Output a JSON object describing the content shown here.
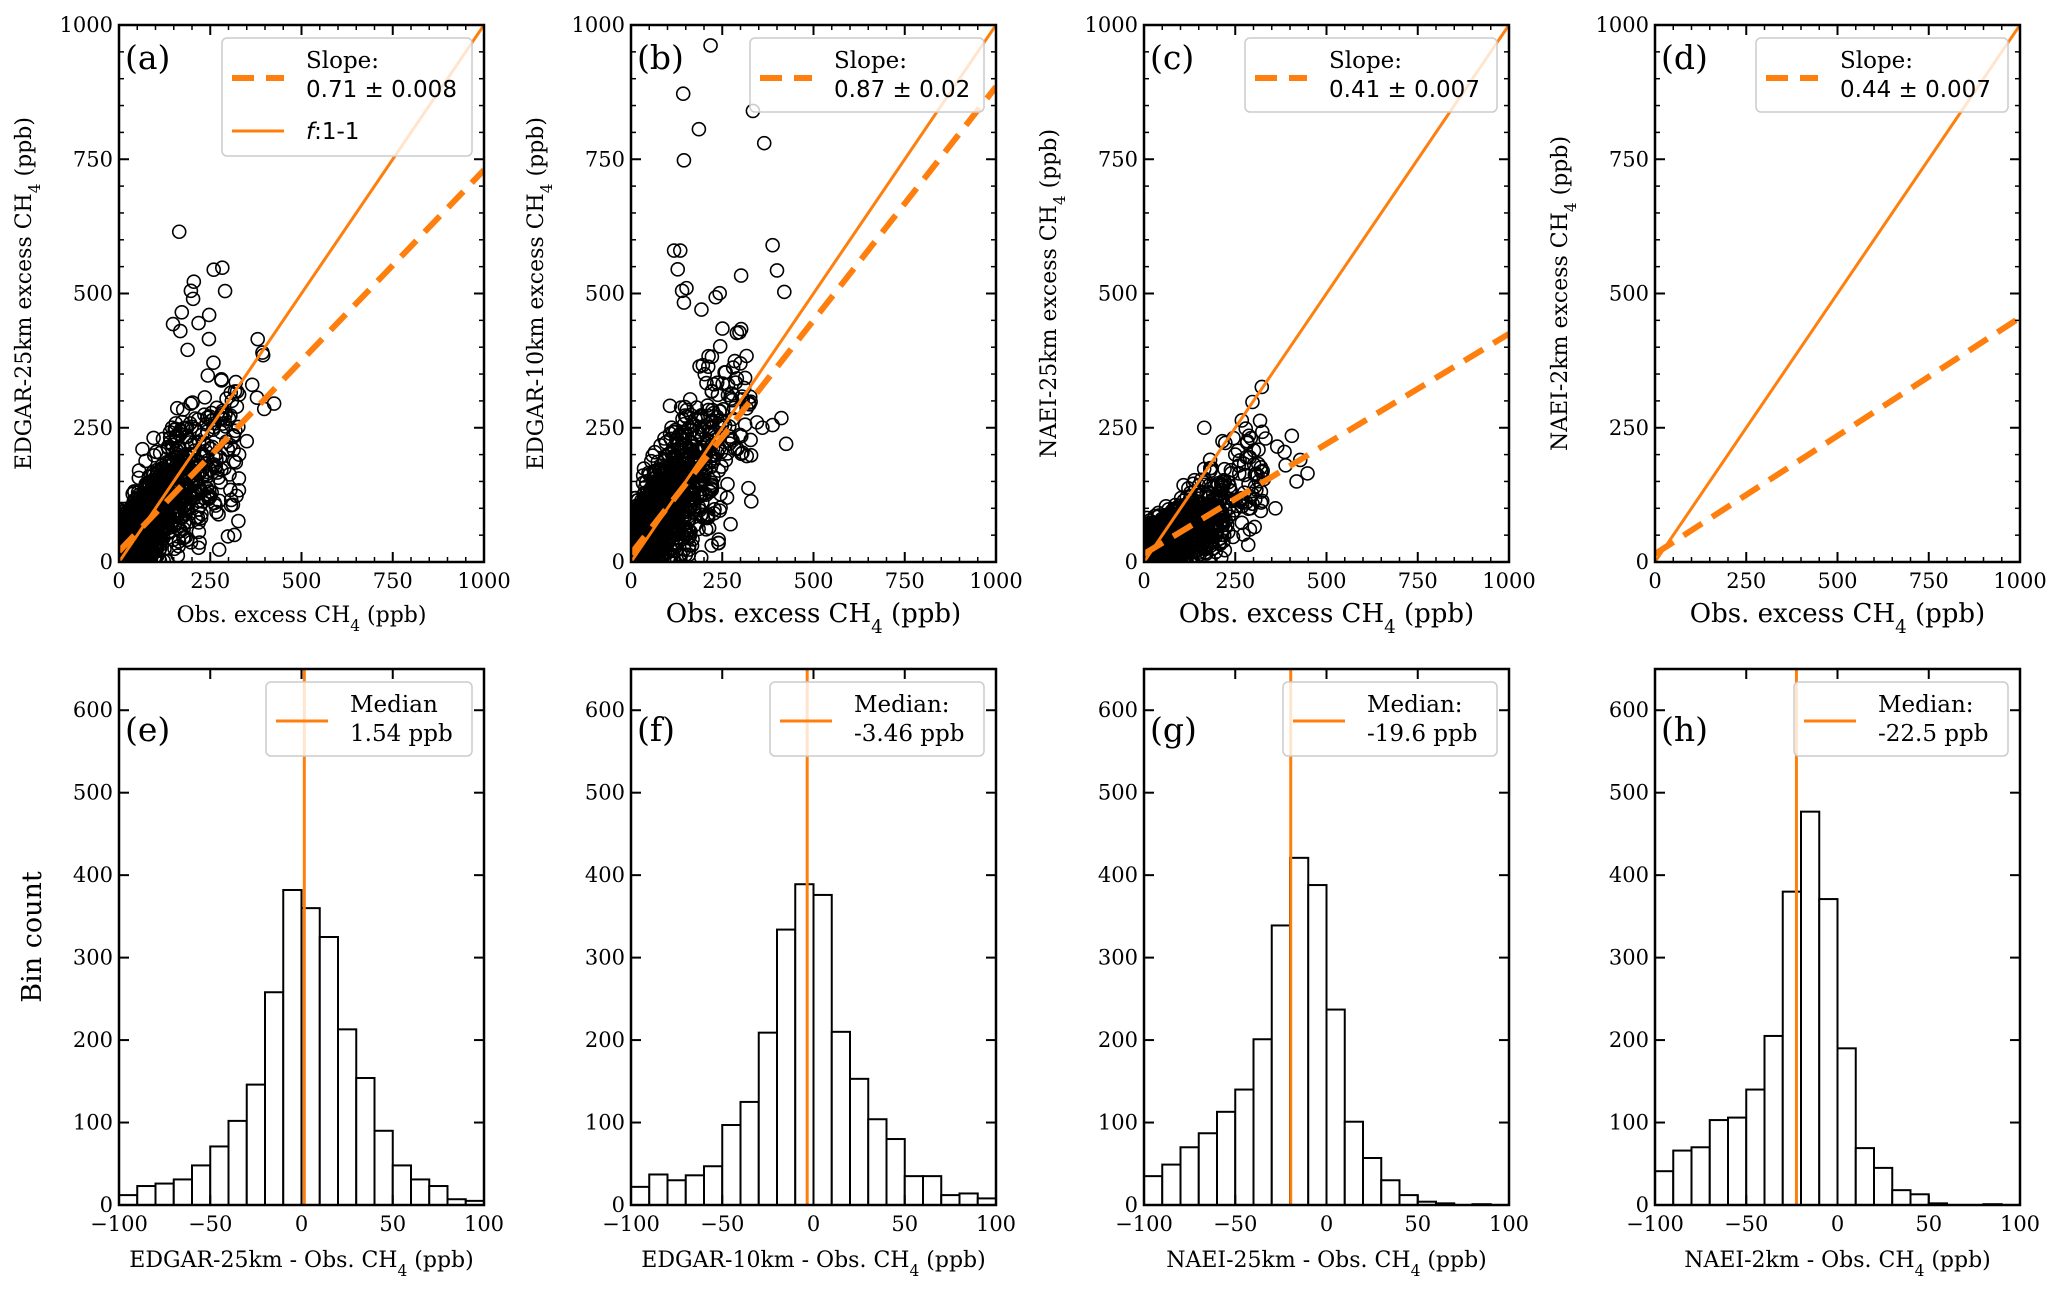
{
  "figure": {
    "accent_color": "#ff7f0e",
    "marker_color": "#000000"
  },
  "chart_data": [
    {
      "id": "a",
      "type": "scatter",
      "panel_label": "(a)",
      "xlabel": "Obs. excess CH4 (ppb)",
      "ylabel": "EDGAR-25km excess CH4 (ppb)",
      "xlim": [
        0,
        1000
      ],
      "ylim": [
        0,
        1000
      ],
      "xticks": [
        0,
        250,
        500,
        750,
        1000
      ],
      "yticks": [
        0,
        250,
        500,
        750,
        1000
      ],
      "legend": {
        "position": "top-right",
        "entries": [
          {
            "style": "dashed",
            "title": "Slope:",
            "label": "0.71 ± 0.008"
          },
          {
            "style": "solid",
            "title": "",
            "label": "f:1-1"
          }
        ]
      },
      "fit": {
        "slope": 0.71,
        "slope_err": 0.008,
        "intercept": 20
      },
      "one_to_one": true,
      "cloud": {
        "n": 1400,
        "xscale": 95,
        "spread": 45,
        "seed": 11
      },
      "outliers": [
        [
          165,
          615
        ],
        [
          283,
          548
        ],
        [
          205,
          522
        ],
        [
          197,
          505
        ],
        [
          203,
          490
        ],
        [
          172,
          465
        ],
        [
          148,
          443
        ],
        [
          168,
          430
        ],
        [
          218,
          445
        ],
        [
          247,
          460
        ],
        [
          380,
          415
        ],
        [
          393,
          390
        ],
        [
          395,
          385
        ],
        [
          188,
          395
        ],
        [
          365,
          330
        ],
        [
          320,
          335
        ],
        [
          378,
          306
        ],
        [
          425,
          295
        ],
        [
          398,
          285
        ],
        [
          283,
          268
        ],
        [
          195,
          258
        ],
        [
          350,
          225
        ],
        [
          262,
          110
        ]
      ]
    },
    {
      "id": "b",
      "type": "scatter",
      "panel_label": "(b)",
      "xlabel": "Obs. excess CH4 (ppb)",
      "ylabel": "EDGAR-10km excess CH4 (ppb)",
      "xlim": [
        0,
        1000
      ],
      "ylim": [
        0,
        1000
      ],
      "xticks": [
        0,
        250,
        500,
        750,
        1000
      ],
      "yticks": [
        0,
        250,
        500,
        750,
        1000
      ],
      "legend": {
        "position": "top-right",
        "entries": [
          {
            "style": "dashed",
            "title": "Slope:",
            "label": "0.87 ± 0.02"
          }
        ]
      },
      "fit": {
        "slope": 0.87,
        "slope_err": 0.02,
        "intercept": 15
      },
      "one_to_one": true,
      "cloud": {
        "n": 1600,
        "xscale": 90,
        "spread": 55,
        "seed": 23
      },
      "outliers": [
        [
          218,
          962
        ],
        [
          143,
          872
        ],
        [
          186,
          806
        ],
        [
          334,
          840
        ],
        [
          145,
          748
        ],
        [
          365,
          780
        ],
        [
          118,
          580
        ],
        [
          135,
          580
        ],
        [
          128,
          545
        ],
        [
          140,
          505
        ],
        [
          152,
          510
        ],
        [
          388,
          590
        ],
        [
          400,
          543
        ],
        [
          420,
          503
        ],
        [
          145,
          483
        ],
        [
          232,
          493
        ],
        [
          193,
          470
        ],
        [
          412,
          268
        ],
        [
          388,
          255
        ],
        [
          425,
          220
        ],
        [
          360,
          250
        ],
        [
          345,
          260
        ],
        [
          240,
          35
        ]
      ]
    },
    {
      "id": "c",
      "type": "scatter",
      "panel_label": "(c)",
      "xlabel": "Obs. excess CH4 (ppb)",
      "ylabel": "NAEI-25km excess CH4 (ppb)",
      "xlim": [
        0,
        1000
      ],
      "ylim": [
        0,
        1000
      ],
      "xticks": [
        0,
        250,
        500,
        750,
        1000
      ],
      "yticks": [
        0,
        250,
        500,
        750,
        1000
      ],
      "legend": {
        "position": "top-right",
        "entries": [
          {
            "style": "dashed",
            "title": "Slope:",
            "label": "0.41 ± 0.007"
          }
        ]
      },
      "fit": {
        "slope": 0.41,
        "slope_err": 0.007,
        "intercept": 15
      },
      "one_to_one": true,
      "cloud": {
        "n": 1400,
        "xscale": 90,
        "spread": 30,
        "seed": 37
      },
      "outliers": [
        [
          165,
          250
        ],
        [
          215,
          225
        ],
        [
          283,
          225
        ],
        [
          333,
          230
        ],
        [
          405,
          235
        ],
        [
          365,
          215
        ],
        [
          385,
          205
        ],
        [
          388,
          180
        ],
        [
          428,
          190
        ],
        [
          448,
          165
        ],
        [
          418,
          150
        ],
        [
          290,
          195
        ],
        [
          250,
          200
        ],
        [
          360,
          100
        ],
        [
          320,
          95
        ],
        [
          185,
          175
        ]
      ]
    },
    {
      "id": "d",
      "type": "scatter",
      "panel_label": "(d)",
      "xlabel": "Obs. excess CH4 (ppb)",
      "ylabel": "NAEI-2km excess CH4 (ppb)",
      "xlim": [
        0,
        1000
      ],
      "ylim": [
        0,
        1000
      ],
      "xticks": [
        0,
        250,
        500,
        750,
        1000
      ],
      "yticks": [
        0,
        250,
        500,
        750,
        1000
      ],
      "legend": {
        "position": "top-right",
        "entries": [
          {
            "style": "dashed",
            "title": "Slope:",
            "label": "0.44 ± 0.007"
          }
        ]
      },
      "fit": {
        "slope": 0.44,
        "slope_err": 0.007,
        "intercept": 15
      },
      "one_to_one": true,
      "cloud": {
        "n": 0,
        "xscale": 0,
        "spread": 0,
        "seed": 1
      },
      "outliers": []
    },
    {
      "id": "e",
      "type": "bar",
      "subtype": "histogram",
      "panel_label": "(e)",
      "xlabel": "EDGAR-25km - Obs. CH4 (ppb)",
      "ylabel": "Bin count",
      "xlim": [
        -100,
        100
      ],
      "ylim": [
        0,
        650
      ],
      "xticks": [
        -100,
        -50,
        0,
        50,
        100
      ],
      "yticks": [
        0,
        100,
        200,
        300,
        400,
        500,
        600
      ],
      "bin_edges_start": -100,
      "bin_width": 10,
      "values": [
        12,
        23,
        26,
        31,
        48,
        71,
        102,
        146,
        258,
        382,
        360,
        325,
        213,
        154,
        90,
        48,
        31,
        23,
        7,
        5
      ],
      "median": 1.54,
      "legend": {
        "position": "top-right",
        "title": "Median",
        "label": "1.54 ppb"
      }
    },
    {
      "id": "f",
      "type": "bar",
      "subtype": "histogram",
      "panel_label": "(f)",
      "xlabel": "EDGAR-10km - Obs. CH4 (ppb)",
      "ylabel": "",
      "xlim": [
        -100,
        100
      ],
      "ylim": [
        0,
        650
      ],
      "xticks": [
        -100,
        -50,
        0,
        50,
        100
      ],
      "yticks": [
        0,
        100,
        200,
        300,
        400,
        500,
        600
      ],
      "bin_edges_start": -100,
      "bin_width": 10,
      "values": [
        22,
        37,
        30,
        36,
        47,
        97,
        125,
        209,
        334,
        389,
        376,
        210,
        153,
        104,
        80,
        35,
        35,
        12,
        14,
        8
      ],
      "median": -3.46,
      "legend": {
        "position": "top-right",
        "title": "Median:",
        "label": "-3.46 ppb"
      }
    },
    {
      "id": "g",
      "type": "bar",
      "subtype": "histogram",
      "panel_label": "(g)",
      "xlabel": "NAEI-25km - Obs. CH4 (ppb)",
      "ylabel": "",
      "xlim": [
        -100,
        100
      ],
      "ylim": [
        0,
        650
      ],
      "xticks": [
        -100,
        -50,
        0,
        50,
        100
      ],
      "yticks": [
        0,
        100,
        200,
        300,
        400,
        500,
        600
      ],
      "bin_edges_start": -100,
      "bin_width": 10,
      "values": [
        35,
        49,
        70,
        87,
        113,
        140,
        201,
        339,
        421,
        388,
        237,
        101,
        57,
        30,
        12,
        4,
        2,
        0,
        1,
        0
      ],
      "median": -19.6,
      "legend": {
        "position": "top-right",
        "title": "Median:",
        "label": "-19.6 ppb"
      }
    },
    {
      "id": "h",
      "type": "bar",
      "subtype": "histogram",
      "panel_label": "(h)",
      "xlabel": "NAEI-2km - Obs. CH4 (ppb)",
      "ylabel": "",
      "xlim": [
        -100,
        100
      ],
      "ylim": [
        0,
        650
      ],
      "xticks": [
        -100,
        -50,
        0,
        50,
        100
      ],
      "yticks": [
        0,
        100,
        200,
        300,
        400,
        500,
        600
      ],
      "bin_edges_start": -100,
      "bin_width": 10,
      "values": [
        41,
        66,
        70,
        103,
        106,
        140,
        205,
        380,
        477,
        371,
        190,
        69,
        45,
        18,
        13,
        2,
        0,
        0,
        1,
        0
      ],
      "median": -22.5,
      "legend": {
        "position": "top-right",
        "title": "Median:",
        "label": "-22.5 ppb"
      }
    }
  ]
}
